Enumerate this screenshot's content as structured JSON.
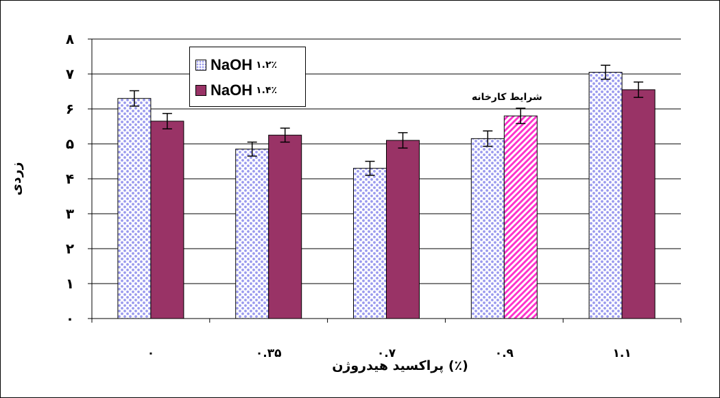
{
  "chart_data": {
    "type": "bar",
    "categories": [
      "۰",
      "۰.۳۵",
      "۰.۷",
      "۰.۹",
      "۱.۱"
    ],
    "series": [
      {
        "name": "NaOH ۱.۲٪",
        "legend_main": "NaOH",
        "legend_suffix": "۱.۲٪",
        "values": [
          6.3,
          4.85,
          4.3,
          5.15,
          7.05
        ],
        "errors": [
          0.22,
          0.2,
          0.2,
          0.22,
          0.2
        ],
        "color": "#9999ee",
        "pattern": "dots"
      },
      {
        "name": "NaOH ۱.۴٪",
        "legend_main": "NaOH",
        "legend_suffix": "۱.۴٪",
        "values": [
          5.65,
          5.25,
          5.1,
          5.8,
          6.55
        ],
        "errors": [
          0.22,
          0.2,
          0.22,
          0.22,
          0.22
        ],
        "color": "#993366",
        "pattern": "solid"
      }
    ],
    "highlight": {
      "series": 1,
      "category": 3,
      "pattern": "diagonal",
      "color": "#ff33cc",
      "label": "شرایط کارخانه"
    },
    "ylim": [
      0,
      8
    ],
    "yticks": [
      "۰",
      "۱",
      "۲",
      "۳",
      "۴",
      "۵",
      "۶",
      "۷",
      "۸"
    ],
    "ylabel": "زردی",
    "xlabel": "پراکسید هیدروژن (٪)",
    "grid": true,
    "legend_position": "top-left"
  }
}
